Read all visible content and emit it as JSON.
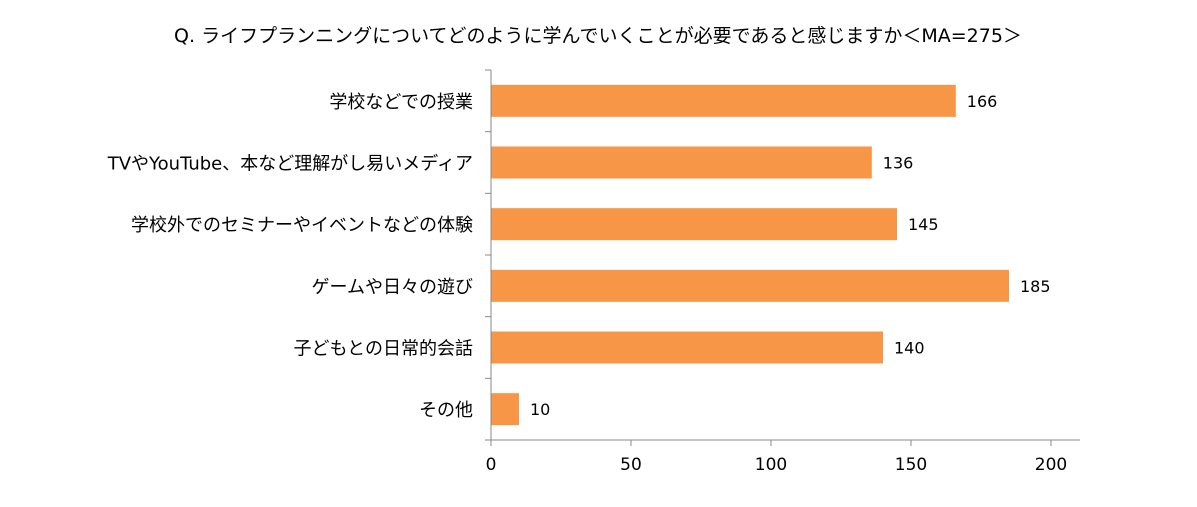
{
  "chart_data": {
    "type": "bar",
    "orientation": "horizontal",
    "title": "Q. ライフプランニングについてどのように学んでいくことが必要であると感じますか＜MA=275＞",
    "categories": [
      "学校などでの授業",
      "TVやYouTube、本など理解がし易いメディア",
      "学校外でのセミナーやイベントなどの体験",
      "ゲームや日々の遊び",
      "子どもとの日常的会話",
      "その他"
    ],
    "values": [
      166,
      136,
      145,
      185,
      140,
      10
    ],
    "data_labels": [
      "166",
      "136",
      "145",
      "185",
      "140",
      "10"
    ],
    "xlim": [
      0,
      200
    ],
    "xticks": [
      0,
      50,
      100,
      150,
      200
    ],
    "xtick_labels": [
      "0",
      "50",
      "100",
      "150",
      "200"
    ],
    "xlabel": "",
    "ylabel": "",
    "grid": false,
    "legend": "none",
    "bar_color": "#F79646",
    "axis_color": "#888888"
  }
}
